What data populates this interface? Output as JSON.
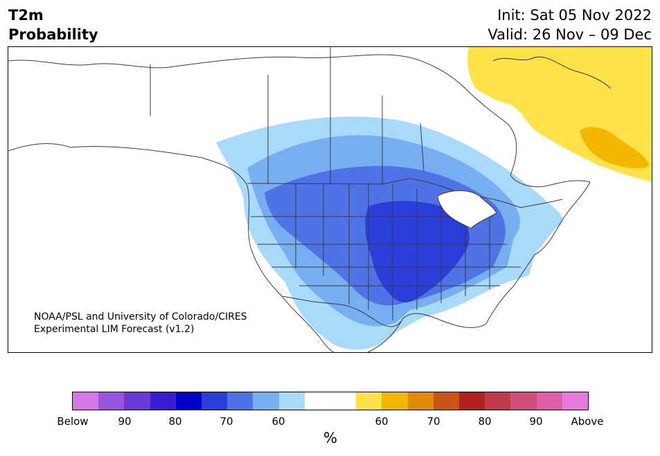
{
  "header": {
    "title_line1": "T2m",
    "title_line2": "Probability",
    "init": "Init: Sat 05 Nov 2022",
    "valid": "Valid: 26 Nov – 09 Dec"
  },
  "map": {
    "credit_line1": "NOAA/PSL and University of Colorado/CIRES",
    "credit_line2": "Experimental LIM Forecast (v1.2)"
  },
  "colorbar": {
    "unit": "%",
    "colors": [
      "#d575e6",
      "#9a55e0",
      "#6b3ad8",
      "#3a1fd2",
      "#0000cd",
      "#2a3fd9",
      "#4f73e6",
      "#76aef0",
      "#aadafa",
      "#ffffff",
      "#ffffff",
      "#ffe14a",
      "#f3b700",
      "#e28a0c",
      "#c95616",
      "#b22222",
      "#c23a4e",
      "#cf4f7a",
      "#dc5fa8",
      "#e87adf"
    ],
    "ticks": [
      "Below",
      "90",
      "80",
      "70",
      "60",
      "60",
      "70",
      "80",
      "90",
      "Above"
    ]
  }
}
